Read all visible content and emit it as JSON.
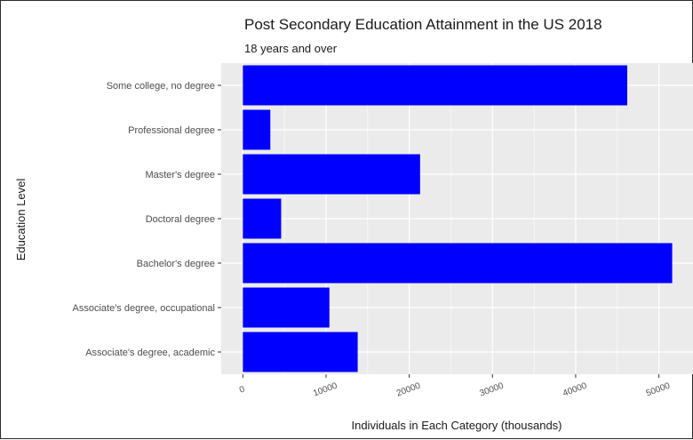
{
  "chart_data": {
    "type": "bar",
    "orientation": "horizontal",
    "title": "Post Secondary Education Attainment in the US 2018",
    "subtitle": "18 years and over",
    "xlabel": "Individuals in Each Category (thousands)",
    "ylabel": "Education Level",
    "categories": [
      "Some college, no degree",
      "Professional degree",
      "Master's degree",
      "Doctoral degree",
      "Bachelor's degree",
      "Associate's degree, occupational",
      "Associate's degree, academic"
    ],
    "values": [
      46200,
      3300,
      21300,
      4600,
      51600,
      10400,
      13800
    ],
    "xlim": [
      -2600,
      54100
    ],
    "xticks": [
      0,
      10000,
      20000,
      30000,
      40000,
      50000
    ],
    "xtick_labels": [
      "0",
      "10000",
      "20000",
      "30000",
      "40000",
      "50000"
    ],
    "bar_color": "#0000ff",
    "panel_background": "#ebebeb",
    "grid": true,
    "legend": "none"
  }
}
